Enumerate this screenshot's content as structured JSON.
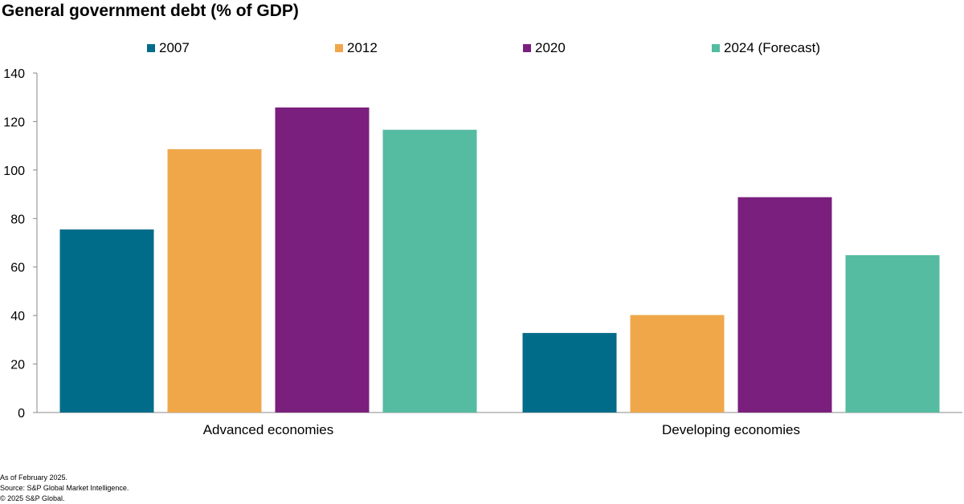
{
  "title": "General government debt (% of GDP)",
  "footnotes": {
    "as_of": "As of February 2025.",
    "source": "Source: S&P Global Market Intelligence.",
    "copyright": "© 2025 S&P Global."
  },
  "chart_data": {
    "type": "bar",
    "title": "General government debt (% of GDP)",
    "xlabel": "",
    "ylabel": "",
    "categories": [
      "Advanced economies",
      "Developing economies"
    ],
    "series": [
      {
        "name": "2007",
        "color": "#006C8A",
        "values": [
          75.5,
          32.8
        ]
      },
      {
        "name": "2012",
        "color": "#F0A74A",
        "values": [
          108.6,
          40.2
        ]
      },
      {
        "name": "2020",
        "color": "#7A1F7D",
        "values": [
          125.8,
          88.8
        ]
      },
      {
        "name": "2024 (Forecast)",
        "color": "#55BBA1",
        "values": [
          116.6,
          64.9
        ]
      }
    ],
    "ylim": [
      0,
      140
    ],
    "yticks": [
      0,
      20,
      40,
      60,
      80,
      100,
      120,
      140
    ],
    "grid": false,
    "legend": "top"
  }
}
